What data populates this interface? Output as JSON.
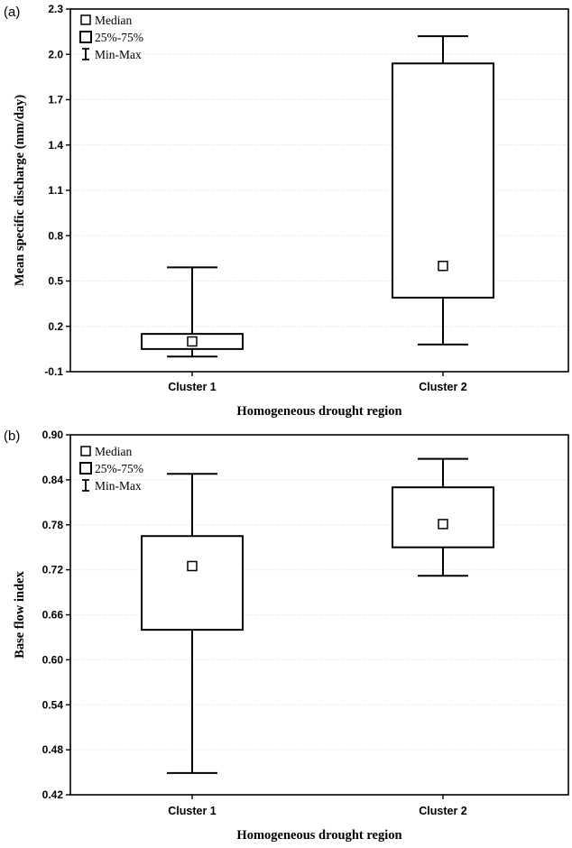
{
  "chart_data": [
    {
      "panel_label": "(a)",
      "type": "box",
      "xlabel": "Homogeneous drought region",
      "ylabel": "Mean specific discharge (mm/day)",
      "categories": [
        "Cluster 1",
        "Cluster 2"
      ],
      "ylim": [
        -0.1,
        2.3
      ],
      "yticks": [
        -0.1,
        0.2,
        0.5,
        0.8,
        1.1,
        1.4,
        1.7,
        2.0,
        2.3
      ],
      "ytick_labels": [
        "-0.1",
        "0.2",
        "0.5",
        "0.8",
        "1.1",
        "1.4",
        "1.7",
        "2.0",
        "2.3"
      ],
      "boxes": [
        {
          "category": "Cluster 1",
          "min": 0.0,
          "q1": 0.05,
          "median": 0.1,
          "q3": 0.15,
          "max": 0.59
        },
        {
          "category": "Cluster 2",
          "min": 0.08,
          "q1": 0.39,
          "median": 0.6,
          "q3": 1.94,
          "max": 2.12
        }
      ],
      "legend": {
        "position": "top-left",
        "entries": [
          "Median",
          "25%-75%",
          "Min-Max"
        ]
      },
      "grid": true
    },
    {
      "panel_label": "(b)",
      "type": "box",
      "xlabel": "Homogeneous drought region",
      "ylabel": "Base flow index",
      "categories": [
        "Cluster 1",
        "Cluster 2"
      ],
      "ylim": [
        0.42,
        0.9
      ],
      "yticks": [
        0.42,
        0.48,
        0.54,
        0.6,
        0.66,
        0.72,
        0.78,
        0.84,
        0.9
      ],
      "ytick_labels": [
        "0.42",
        "0.48",
        "0.54",
        "0.60",
        "0.66",
        "0.72",
        "0.78",
        "0.84",
        "0.90"
      ],
      "boxes": [
        {
          "category": "Cluster 1",
          "min": 0.449,
          "q1": 0.64,
          "median": 0.725,
          "q3": 0.765,
          "max": 0.848
        },
        {
          "category": "Cluster 2",
          "min": 0.712,
          "q1": 0.75,
          "median": 0.781,
          "q3": 0.83,
          "max": 0.868
        }
      ],
      "legend": {
        "position": "top-left",
        "entries": [
          "Median",
          "25%-75%",
          "Min-Max"
        ]
      },
      "grid": true
    }
  ]
}
